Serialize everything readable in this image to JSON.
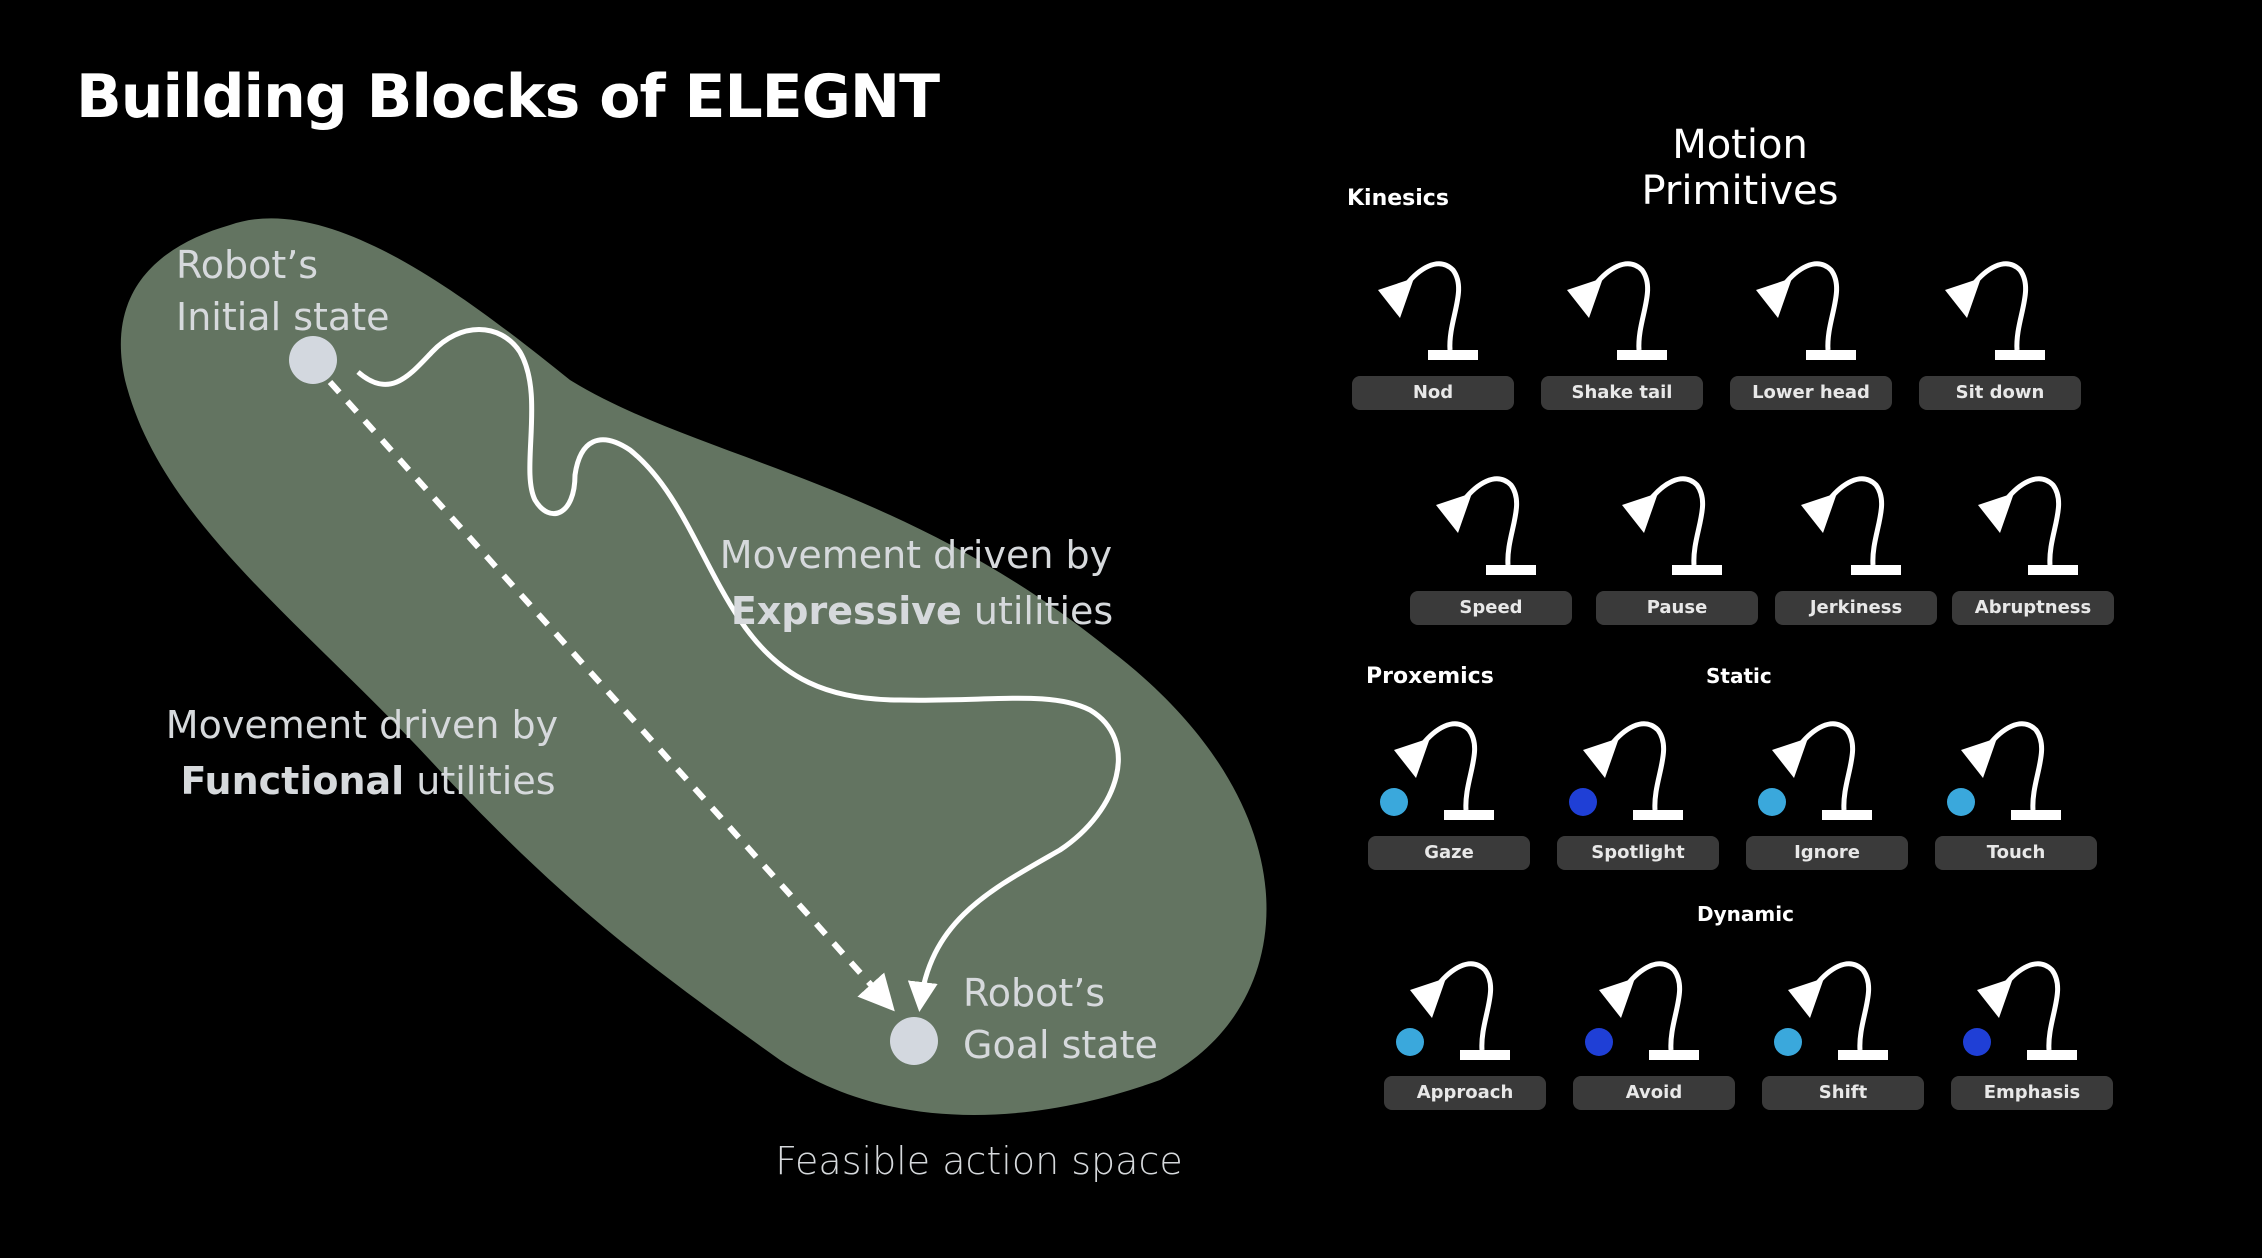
{
  "title": "Building Blocks of ELEGNT",
  "diagram": {
    "initial_state": [
      "Robot’s",
      "Initial state"
    ],
    "goal_state": [
      "Robot’s",
      "Goal state"
    ],
    "expressive": {
      "line1": "Movement driven by",
      "bold": "Expressive",
      "rest": " utilities"
    },
    "functional": {
      "line1": "Movement driven by",
      "bold": "Functional",
      "rest": " utilities"
    },
    "caption": "Feasible action space",
    "colors": {
      "blob": "#637461",
      "state": "#d3d8df"
    }
  },
  "motion_primitives": {
    "title": "Motion Primitives",
    "kinesics": {
      "title": "Kinesics",
      "items": [
        "Nod",
        "Shake tail",
        "Lower head",
        "Sit down",
        "Speed",
        "Pause",
        "Jerkiness",
        "Abruptness"
      ]
    },
    "proxemics": {
      "title": "Proxemics",
      "static": {
        "title": "Static",
        "items": [
          "Gaze",
          "Spotlight",
          "Ignore",
          "Touch"
        ]
      },
      "dynamic": {
        "title": "Dynamic",
        "items": [
          "Approach",
          "Avoid",
          "Shift",
          "Emphasis"
        ]
      }
    },
    "colors": {
      "person": "#3aa8dc",
      "spot": "#1f3fd6",
      "pill": "#3a3a3a"
    }
  }
}
